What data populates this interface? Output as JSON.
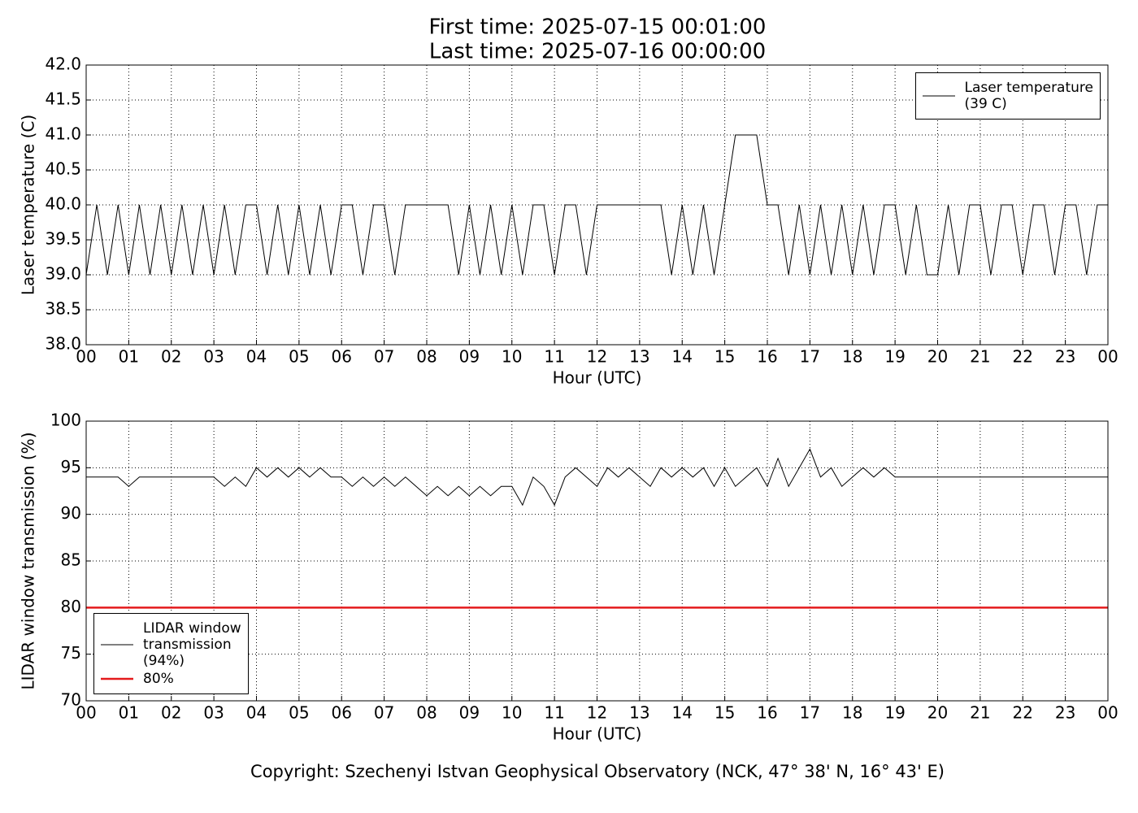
{
  "header": {
    "first": "First time: 2025-07-15 00:01:00",
    "last": "Last time: 2025-07-16 00:00:00"
  },
  "footer": "Copyright: Szechenyi Istvan Geophysical Observatory (NCK, 47° 38' N, 16° 43' E)",
  "chart_data": [
    {
      "type": "line",
      "xlabel": "Hour (UTC)",
      "ylabel": "Laser temperature (C)",
      "xlim": [
        0,
        24
      ],
      "ylim": [
        38,
        42
      ],
      "grid": true,
      "legend": "upper right",
      "xticks": [
        {
          "value": 0,
          "label": "00"
        },
        {
          "value": 1,
          "label": "01"
        },
        {
          "value": 2,
          "label": "02"
        },
        {
          "value": 3,
          "label": "03"
        },
        {
          "value": 4,
          "label": "04"
        },
        {
          "value": 5,
          "label": "05"
        },
        {
          "value": 6,
          "label": "06"
        },
        {
          "value": 7,
          "label": "07"
        },
        {
          "value": 8,
          "label": "08"
        },
        {
          "value": 9,
          "label": "09"
        },
        {
          "value": 10,
          "label": "10"
        },
        {
          "value": 11,
          "label": "11"
        },
        {
          "value": 12,
          "label": "12"
        },
        {
          "value": 13,
          "label": "13"
        },
        {
          "value": 14,
          "label": "14"
        },
        {
          "value": 15,
          "label": "15"
        },
        {
          "value": 16,
          "label": "16"
        },
        {
          "value": 17,
          "label": "17"
        },
        {
          "value": 18,
          "label": "18"
        },
        {
          "value": 19,
          "label": "19"
        },
        {
          "value": 20,
          "label": "20"
        },
        {
          "value": 21,
          "label": "21"
        },
        {
          "value": 22,
          "label": "22"
        },
        {
          "value": 23,
          "label": "23"
        },
        {
          "value": 24,
          "label": "00"
        }
      ],
      "yticks": [
        {
          "value": 38,
          "label": "38.0"
        },
        38.5,
        {
          "value": 39,
          "label": "39.0"
        },
        39.5,
        {
          "value": 40,
          "label": "40.0"
        },
        40.5,
        {
          "value": 41,
          "label": "41.0"
        },
        41.5,
        {
          "value": 42,
          "label": "42.0"
        }
      ],
      "series": [
        {
          "name": "Laser temperature\n(39 C)",
          "color": "#000000",
          "linewidth": 1,
          "x": [
            0,
            0.25,
            0.5,
            0.75,
            1,
            1.25,
            1.5,
            1.75,
            2,
            2.25,
            2.5,
            2.75,
            3,
            3.25,
            3.5,
            3.75,
            4,
            4.25,
            4.5,
            4.75,
            5,
            5.25,
            5.5,
            5.75,
            6,
            6.25,
            6.5,
            6.75,
            7,
            7.25,
            7.5,
            7.75,
            8,
            8.25,
            8.5,
            8.75,
            9,
            9.25,
            9.5,
            9.75,
            10,
            10.25,
            10.5,
            10.75,
            11,
            11.25,
            11.5,
            11.75,
            12,
            12.25,
            12.5,
            12.75,
            13,
            13.25,
            13.5,
            13.75,
            14,
            14.25,
            14.5,
            14.75,
            15,
            15.25,
            15.5,
            15.75,
            16,
            16.25,
            16.5,
            16.75,
            17,
            17.25,
            17.5,
            17.75,
            18,
            18.25,
            18.5,
            18.75,
            19,
            19.25,
            19.5,
            19.75,
            20,
            20.25,
            20.5,
            20.75,
            21,
            21.25,
            21.5,
            21.75,
            22,
            22.25,
            22.5,
            22.75,
            23,
            23.25,
            23.5,
            23.75,
            24
          ],
          "values": [
            39,
            40,
            39,
            40,
            39,
            40,
            39,
            40,
            39,
            40,
            39,
            40,
            39,
            40,
            39,
            40,
            40,
            39,
            40,
            39,
            40,
            39,
            40,
            39,
            40,
            40,
            39,
            40,
            40,
            39,
            40,
            40,
            40,
            40,
            40,
            39,
            40,
            39,
            40,
            39,
            40,
            39,
            40,
            40,
            39,
            40,
            40,
            39,
            40,
            40,
            40,
            40,
            40,
            40,
            40,
            39,
            40,
            39,
            40,
            39,
            40,
            41,
            41,
            41,
            40,
            40,
            39,
            40,
            39,
            40,
            39,
            40,
            39,
            40,
            39,
            40,
            40,
            39,
            40,
            39,
            39,
            40,
            39,
            40,
            40,
            39,
            40,
            40,
            39,
            40,
            40,
            39,
            40,
            40,
            39,
            40,
            40
          ]
        }
      ]
    },
    {
      "type": "line",
      "xlabel": "Hour (UTC)",
      "ylabel": "LIDAR window transmission (%)",
      "xlim": [
        0,
        24
      ],
      "ylim": [
        70,
        100
      ],
      "grid": true,
      "legend": "lower left",
      "xticks": [
        {
          "value": 0,
          "label": "00"
        },
        {
          "value": 1,
          "label": "01"
        },
        {
          "value": 2,
          "label": "02"
        },
        {
          "value": 3,
          "label": "03"
        },
        {
          "value": 4,
          "label": "04"
        },
        {
          "value": 5,
          "label": "05"
        },
        {
          "value": 6,
          "label": "06"
        },
        {
          "value": 7,
          "label": "07"
        },
        {
          "value": 8,
          "label": "08"
        },
        {
          "value": 9,
          "label": "09"
        },
        {
          "value": 10,
          "label": "10"
        },
        {
          "value": 11,
          "label": "11"
        },
        {
          "value": 12,
          "label": "12"
        },
        {
          "value": 13,
          "label": "13"
        },
        {
          "value": 14,
          "label": "14"
        },
        {
          "value": 15,
          "label": "15"
        },
        {
          "value": 16,
          "label": "16"
        },
        {
          "value": 17,
          "label": "17"
        },
        {
          "value": 18,
          "label": "18"
        },
        {
          "value": 19,
          "label": "19"
        },
        {
          "value": 20,
          "label": "20"
        },
        {
          "value": 21,
          "label": "21"
        },
        {
          "value": 22,
          "label": "22"
        },
        {
          "value": 23,
          "label": "23"
        },
        {
          "value": 24,
          "label": "00"
        }
      ],
      "yticks": [
        70,
        75,
        80,
        85,
        90,
        95,
        100
      ],
      "series": [
        {
          "name": "LIDAR window\ntransmission\n(94%)",
          "color": "#000000",
          "linewidth": 1,
          "x": [
            0,
            0.25,
            0.5,
            0.75,
            1,
            1.25,
            1.5,
            1.75,
            2,
            2.25,
            2.5,
            2.75,
            3,
            3.25,
            3.5,
            3.75,
            4,
            4.25,
            4.5,
            4.75,
            5,
            5.25,
            5.5,
            5.75,
            6,
            6.25,
            6.5,
            6.75,
            7,
            7.25,
            7.5,
            7.75,
            8,
            8.25,
            8.5,
            8.75,
            9,
            9.25,
            9.5,
            9.75,
            10,
            10.25,
            10.5,
            10.75,
            11,
            11.25,
            11.5,
            11.75,
            12,
            12.25,
            12.5,
            12.75,
            13,
            13.25,
            13.5,
            13.75,
            14,
            14.25,
            14.5,
            14.75,
            15,
            15.25,
            15.5,
            15.75,
            16,
            16.25,
            16.5,
            16.75,
            17,
            17.25,
            17.5,
            17.75,
            18,
            18.25,
            18.5,
            18.75,
            19,
            24
          ],
          "values": [
            94,
            94,
            94,
            94,
            93,
            94,
            94,
            94,
            94,
            94,
            94,
            94,
            94,
            93,
            94,
            93,
            95,
            94,
            95,
            94,
            95,
            94,
            95,
            94,
            94,
            93,
            94,
            93,
            94,
            93,
            94,
            93,
            92,
            93,
            92,
            93,
            92,
            93,
            92,
            93,
            93,
            91,
            94,
            93,
            91,
            94,
            95,
            94,
            93,
            95,
            94,
            95,
            94,
            93,
            95,
            94,
            95,
            94,
            95,
            93,
            95,
            93,
            94,
            95,
            93,
            96,
            93,
            95,
            97,
            94,
            95,
            93,
            94,
            95,
            94,
            95,
            94,
            94
          ]
        },
        {
          "name": "80%",
          "color": "#e41a1c",
          "linewidth": 2.5,
          "x": [
            0,
            24
          ],
          "values": [
            80,
            80
          ]
        }
      ]
    }
  ]
}
